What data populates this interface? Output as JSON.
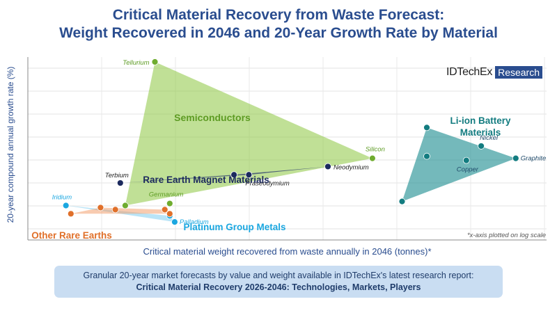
{
  "title_lines": [
    "Critical Material Recovery from Waste Forecast:",
    "Weight Recovered in 2046 and 20-Year Growth Rate by Material"
  ],
  "logo": {
    "brand": "IDTechEx",
    "tag": "Research"
  },
  "banner": {
    "line1": "Granular 20-year market forecasts by value and weight available in IDTechEx's latest research report:",
    "line2": "Critical Material Recovery 2026-2046: Technologies, Markets, Players"
  },
  "colors": {
    "semiconductors": "#6fac2f",
    "liion": "#137c80",
    "rare_earth_magnet": "#1c2a5e",
    "pgm": "#1ba7e0",
    "other_re": "#e0702a",
    "title": "#2a4d8f"
  },
  "chart_data": {
    "type": "scatter",
    "xlabel": "Critical material weight recovered from waste annually in 2046 (tonnes)*",
    "ylabel": "20-year compound annual growth rate (%)",
    "note": "*x-axis plotted on log scale",
    "xscale": "log",
    "x_ticks_labeled": false,
    "y_ticks_labeled": false,
    "xlim": [
      0,
      9
    ],
    "ylim": [
      0,
      9
    ],
    "grid": true,
    "groups": [
      {
        "name": "Semiconductors",
        "color": "#6fac2f",
        "points": [
          {
            "label": "Tellurium",
            "x": 2.5,
            "y": 8.0
          },
          {
            "label": "Silicon",
            "x": 6.9,
            "y": 3.3
          },
          {
            "label": "Germanium",
            "x": 2.8,
            "y": 1.1
          },
          {
            "label": "",
            "x": 1.9,
            "y": 1.0
          }
        ]
      },
      {
        "name": "Rare Earth Magnet Materials",
        "color": "#1c2a5e",
        "points": [
          {
            "label": "Terbium",
            "x": 1.8,
            "y": 2.1
          },
          {
            "label": "Praseodymium",
            "x": 4.4,
            "y": 2.5
          },
          {
            "label": "",
            "x": 4.1,
            "y": 2.5
          },
          {
            "label": "Neodymium",
            "x": 6.0,
            "y": 2.9
          }
        ]
      },
      {
        "name": "Li-ion Battery Materials",
        "color": "#137c80",
        "points": [
          {
            "label": "",
            "x": 8.0,
            "y": 4.8
          },
          {
            "label": "Nickel",
            "x": 9.1,
            "y": 3.9
          },
          {
            "label": "Graphite",
            "x": 9.8,
            "y": 3.3
          },
          {
            "label": "",
            "x": 8.0,
            "y": 3.4
          },
          {
            "label": "Copper",
            "x": 8.8,
            "y": 3.2
          },
          {
            "label": "",
            "x": 7.5,
            "y": 1.2
          }
        ]
      },
      {
        "name": "Platinum Group Metals",
        "color": "#1ba7e0",
        "points": [
          {
            "label": "Iridium",
            "x": 0.7,
            "y": 1.0
          },
          {
            "label": "Palladium",
            "x": 2.9,
            "y": 0.2
          },
          {
            "label": "",
            "x": 2.8,
            "y": 0.5
          }
        ]
      },
      {
        "name": "Other Rare Earths",
        "color": "#e0702a",
        "points": [
          {
            "label": "",
            "x": 0.8,
            "y": 0.6
          },
          {
            "label": "",
            "x": 1.4,
            "y": 0.9
          },
          {
            "label": "",
            "x": 1.7,
            "y": 0.8
          },
          {
            "label": "",
            "x": 2.7,
            "y": 0.8
          },
          {
            "label": "",
            "x": 2.8,
            "y": 0.6
          }
        ]
      }
    ]
  }
}
